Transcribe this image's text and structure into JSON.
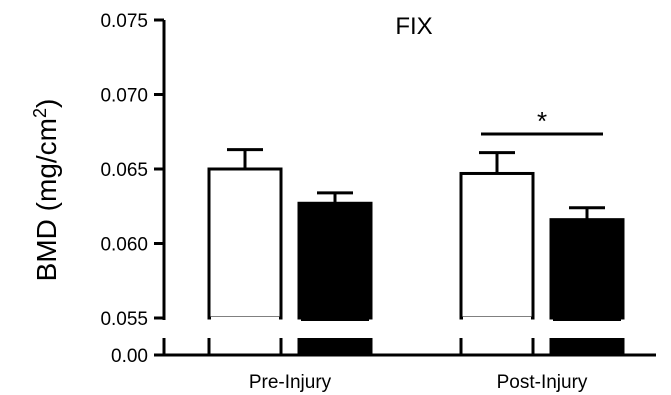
{
  "chart_data": {
    "type": "bar",
    "title": "FIX",
    "ylabel_main": "BMD (mg/cm",
    "ylabel_sup": "2",
    "ylabel_close": ")",
    "categories": [
      "Pre-Injury",
      "Post-Injury"
    ],
    "series": [
      {
        "fill": "#ffffff",
        "values": [
          0.065,
          0.0647
        ],
        "errors": [
          0.0013,
          0.0014
        ]
      },
      {
        "fill": "#000000",
        "values": [
          0.0627,
          0.0616
        ],
        "errors": [
          0.0007,
          0.0008
        ]
      }
    ],
    "upper_axis": {
      "ylim": [
        0.055,
        0.075
      ],
      "ticks": [
        "0.075",
        "0.070",
        "0.065",
        "0.060",
        "0.055"
      ]
    },
    "lower_axis": {
      "ticks": [
        "0.00"
      ]
    },
    "axis_break": true,
    "annotation": {
      "text": "*",
      "category": "Post-Injury"
    }
  }
}
